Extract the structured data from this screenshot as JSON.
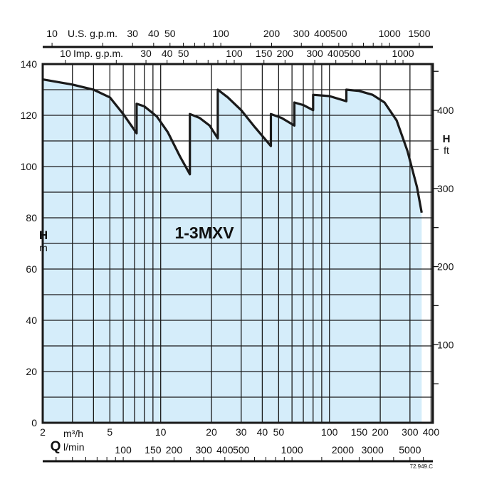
{
  "chart_data": {
    "type": "area",
    "title": "1-3MXV",
    "x_scale": "log",
    "xlim": [
      2,
      410
    ],
    "ylim": [
      0,
      140
    ],
    "grid": true,
    "colors": {
      "fill": "#d5edfa",
      "line": "#1a1a1a",
      "grid": "#1a1a1a"
    },
    "y_left": {
      "label": "H",
      "unit": "m",
      "ticks": [
        0,
        20,
        40,
        60,
        80,
        100,
        120,
        140
      ]
    },
    "y_right": {
      "label": "H",
      "unit": "ft",
      "ticks": [
        100,
        200,
        300,
        400
      ]
    },
    "x_bottom_main": {
      "label": "Q",
      "unit": "m³/h",
      "ticks": [
        2,
        5,
        10,
        20,
        30,
        40,
        50,
        100,
        150,
        200,
        300,
        400
      ]
    },
    "x_bottom_secondary": {
      "unit": "l/min",
      "ticks": [
        100,
        150,
        200,
        300,
        400,
        500,
        1000,
        2000,
        3000,
        5000
      ]
    },
    "x_top_us": {
      "unit": "U.S. g.p.m.",
      "ticks": [
        10,
        30,
        40,
        50,
        100,
        200,
        300,
        400,
        500,
        1000,
        1500
      ]
    },
    "x_top_imp": {
      "unit": "Imp. g.p.m.",
      "ticks": [
        10,
        30,
        40,
        50,
        100,
        150,
        200,
        300,
        400,
        500,
        1000
      ]
    },
    "series": [
      {
        "points": [
          [
            2,
            134
          ],
          [
            3,
            132
          ],
          [
            4,
            130
          ],
          [
            5,
            127
          ],
          [
            6,
            120.5
          ],
          [
            7.2,
            113
          ],
          [
            7.2,
            124.5
          ],
          [
            8,
            123.5
          ],
          [
            9.5,
            119.5
          ],
          [
            11,
            113.5
          ],
          [
            13,
            104
          ],
          [
            14.9,
            97
          ],
          [
            14.9,
            120.5
          ],
          [
            17,
            119
          ],
          [
            19.5,
            116
          ],
          [
            21.8,
            111
          ],
          [
            21.8,
            130
          ],
          [
            25,
            127
          ],
          [
            30,
            122
          ],
          [
            36,
            115.5
          ],
          [
            45,
            108
          ],
          [
            45,
            120.5
          ],
          [
            52,
            119
          ],
          [
            62,
            116
          ],
          [
            62,
            125
          ],
          [
            70,
            124
          ],
          [
            80,
            122
          ],
          [
            80,
            128
          ],
          [
            100,
            127.5
          ],
          [
            126,
            125.5
          ],
          [
            126,
            130
          ],
          [
            150,
            129.5
          ],
          [
            180,
            128
          ],
          [
            212,
            125
          ],
          [
            250,
            118
          ],
          [
            290,
            106
          ],
          [
            330,
            92
          ],
          [
            352,
            82
          ]
        ]
      }
    ],
    "code": "72.949.C"
  }
}
